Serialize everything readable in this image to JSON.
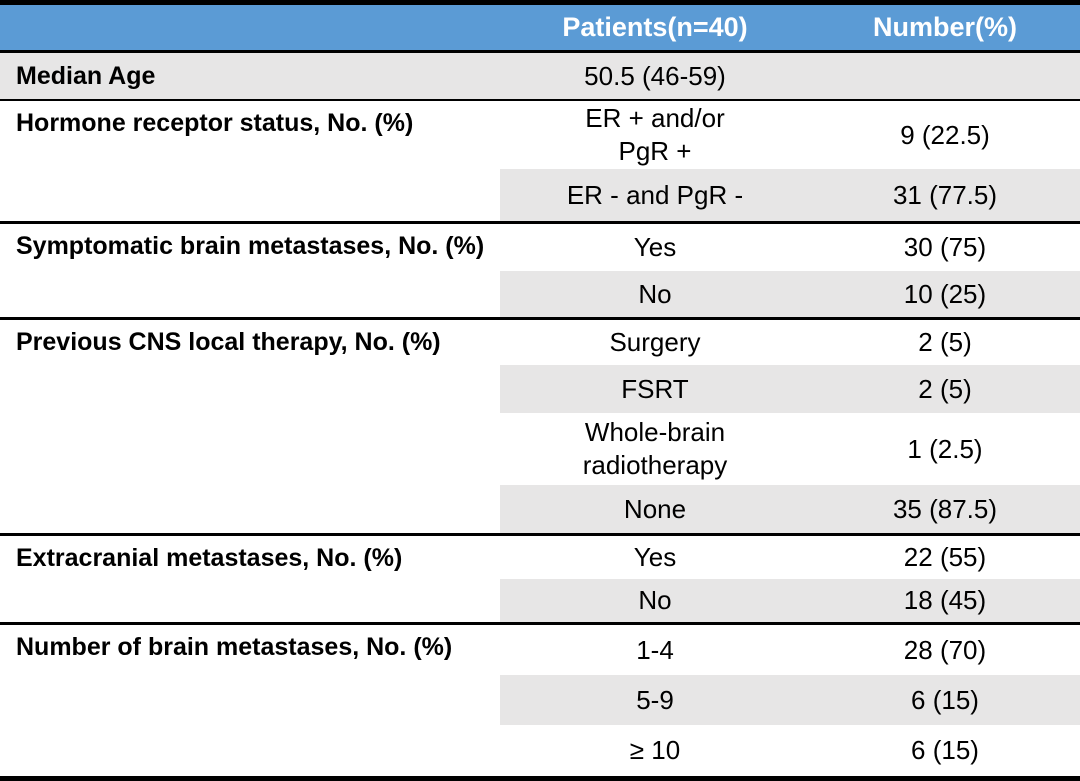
{
  "table": {
    "title_semantic": "patient-characteristics-table",
    "colors": {
      "header_bg": "#5B9BD5",
      "header_text": "#FFFFFF",
      "row_shade": "#E7E6E6",
      "rule": "#000000"
    },
    "header": {
      "col1_label": "",
      "col2_label": "Patients(n=40)",
      "col3_label": "Number(%)"
    },
    "sections": [
      {
        "label": "Median Age",
        "rows": [
          {
            "value": "50.5 (46-59)",
            "number": "",
            "shaded": true
          }
        ]
      },
      {
        "label": "Hormone receptor status, No. (%)",
        "rows": [
          {
            "value": "ER + and/or\nPgR +",
            "number": "9 (22.5)",
            "shaded": false
          },
          {
            "value": "ER - and PgR -",
            "number": "31 (77.5)",
            "shaded": true
          }
        ]
      },
      {
        "label": "Symptomatic brain metastases, No. (%)",
        "rows": [
          {
            "value": "Yes",
            "number": "30 (75)",
            "shaded": false
          },
          {
            "value": "No",
            "number": "10 (25)",
            "shaded": true
          }
        ]
      },
      {
        "label": "Previous CNS local therapy, No. (%)",
        "rows": [
          {
            "value": "Surgery",
            "number": "2 (5)",
            "shaded": false
          },
          {
            "value": "FSRT",
            "number": "2 (5)",
            "shaded": true
          },
          {
            "value": "Whole-brain\nradiotherapy",
            "number": "1 (2.5)",
            "shaded": false
          },
          {
            "value": "None",
            "number": "35 (87.5)",
            "shaded": true
          }
        ]
      },
      {
        "label": "Extracranial metastases, No. (%)",
        "rows": [
          {
            "value": "Yes",
            "number": "22 (55)",
            "shaded": false
          },
          {
            "value": "No",
            "number": "18 (45)",
            "shaded": true
          }
        ]
      },
      {
        "label": "Number of brain metastases, No. (%)",
        "rows": [
          {
            "value": "1-4",
            "number": "28 (70)",
            "shaded": false
          },
          {
            "value": "5-9",
            "number": "6 (15)",
            "shaded": true
          },
          {
            "value": "≥ 10",
            "number": "6 (15)",
            "shaded": false
          }
        ]
      }
    ]
  }
}
